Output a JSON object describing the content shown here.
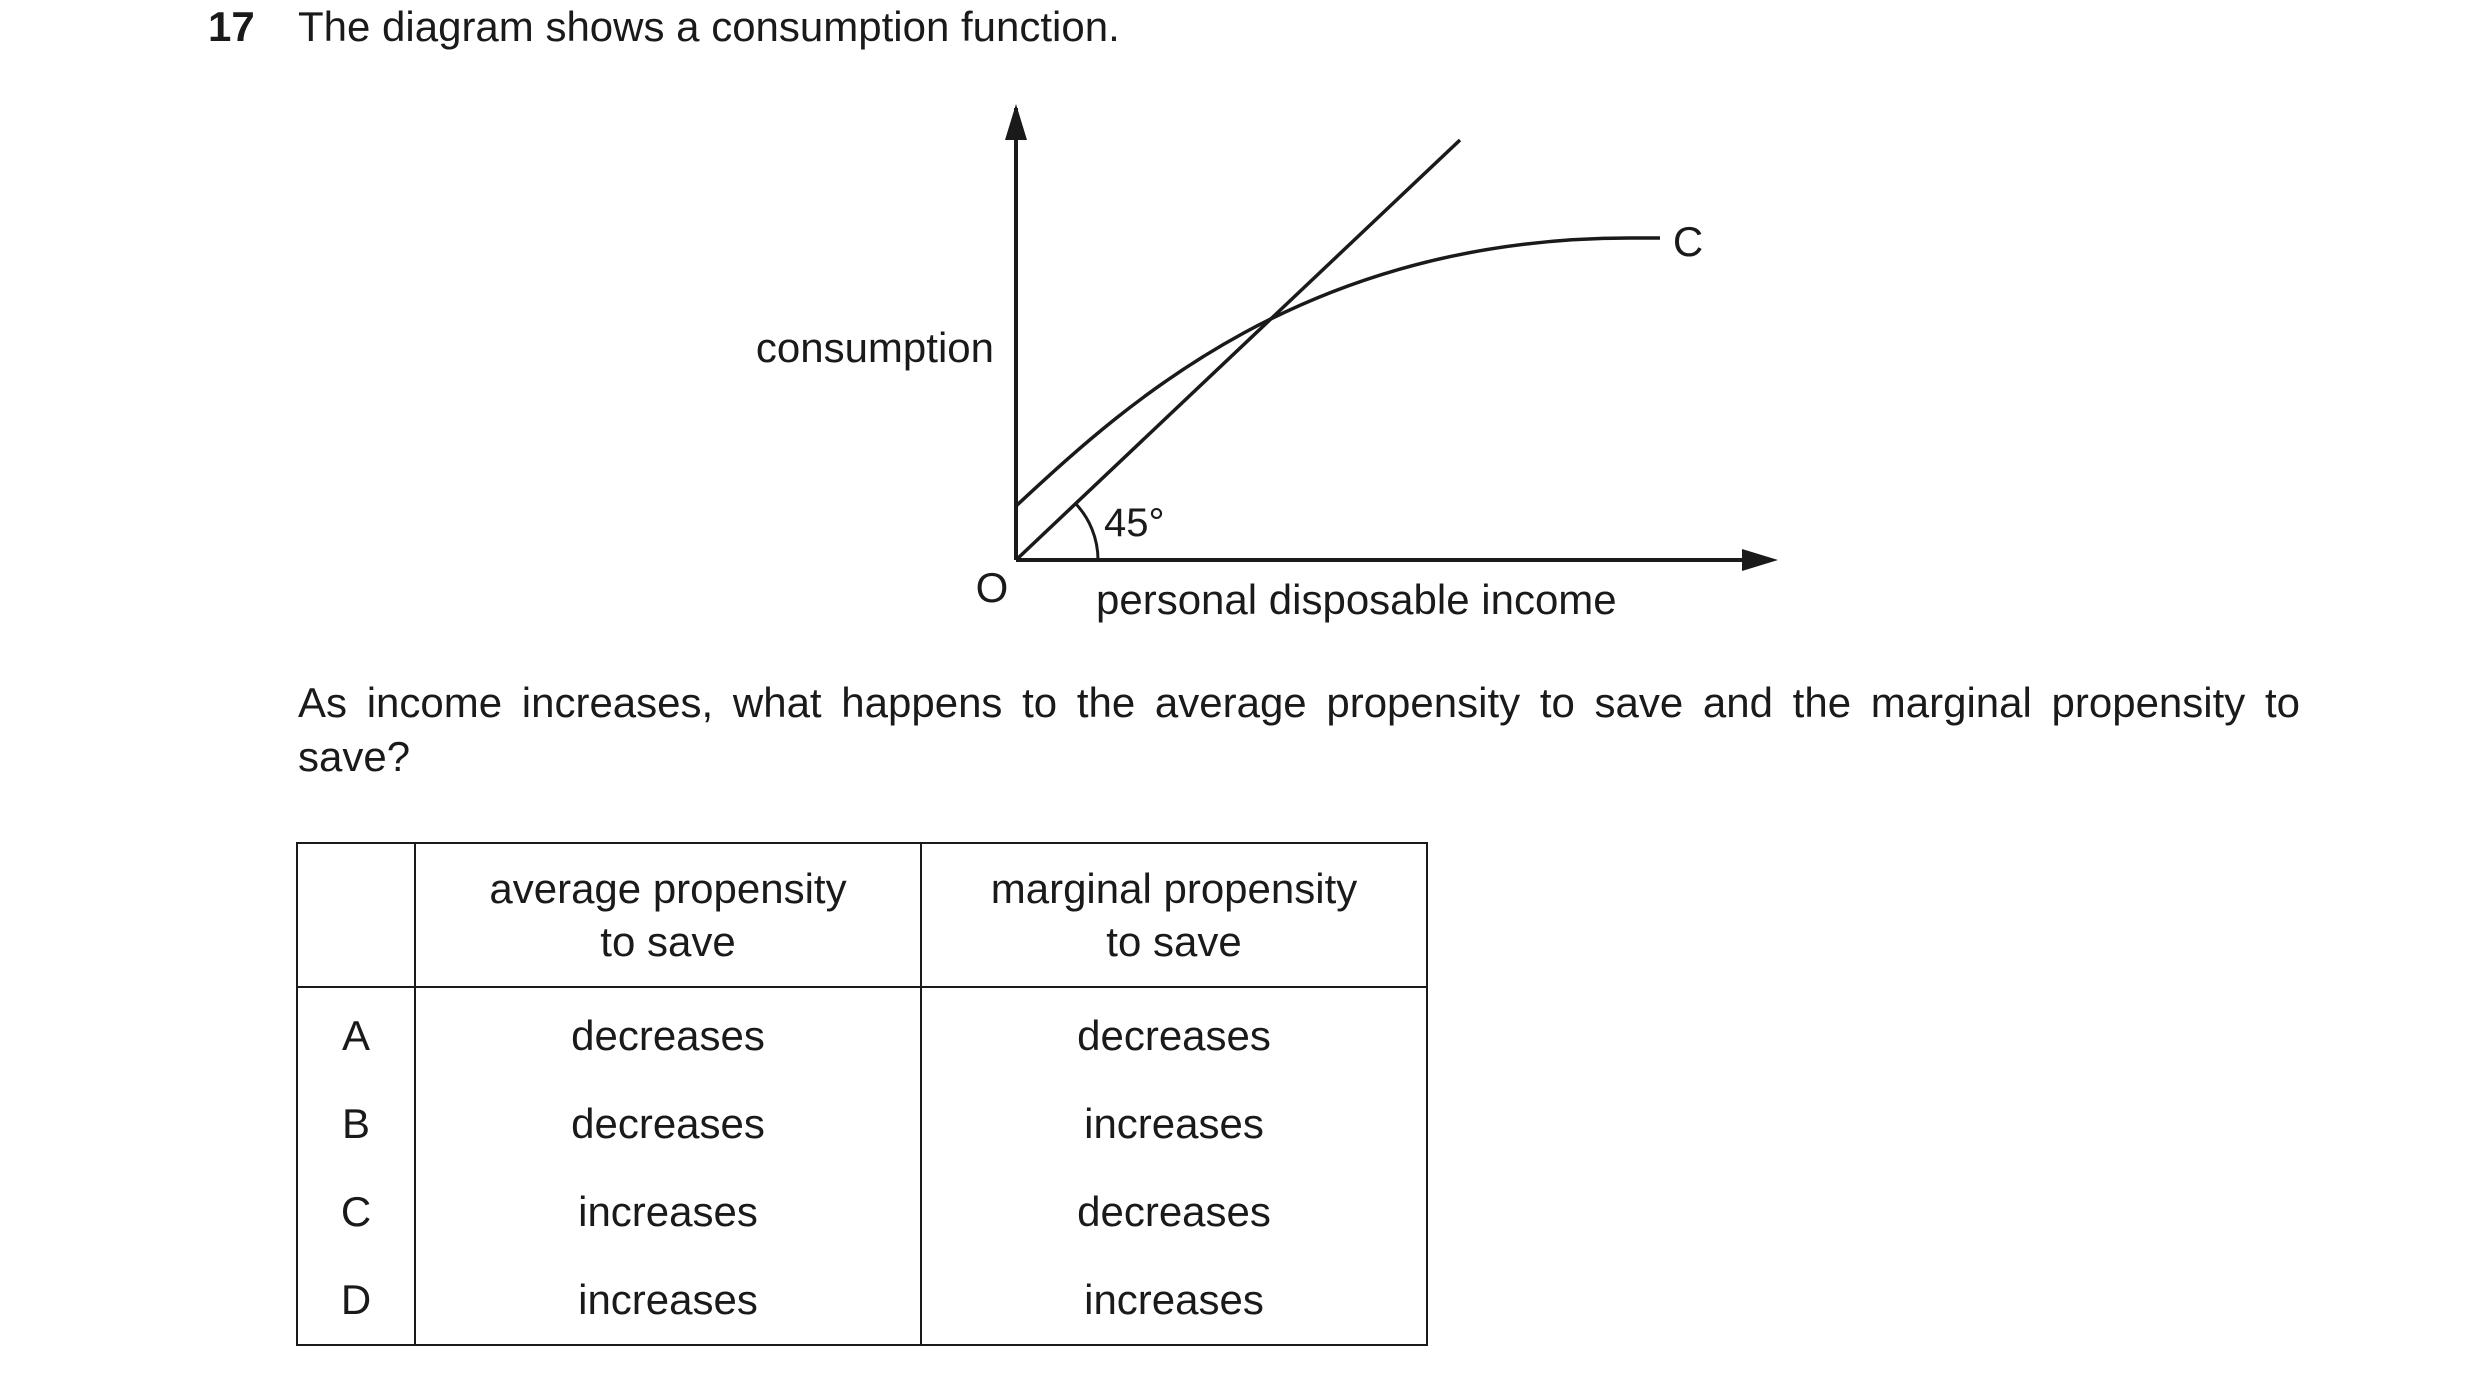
{
  "question": {
    "number": "17",
    "stem": "The diagram shows a consumption function.",
    "prompt": "As income increases, what happens to the average propensity to save and the marginal propensity to save?"
  },
  "diagram": {
    "y_axis_label": "consumption",
    "x_axis_label": "personal disposable income",
    "origin_label": "O",
    "curve_label": "C",
    "angle_label": "45°"
  },
  "table": {
    "headers": {
      "aps": [
        "average propensity",
        "to save"
      ],
      "mps": [
        "marginal propensity",
        "to save"
      ]
    },
    "rows": [
      {
        "letter": "A",
        "aps": "decreases",
        "mps": "decreases"
      },
      {
        "letter": "B",
        "aps": "decreases",
        "mps": "increases"
      },
      {
        "letter": "C",
        "aps": "increases",
        "mps": "decreases"
      },
      {
        "letter": "D",
        "aps": "increases",
        "mps": "increases"
      }
    ]
  }
}
